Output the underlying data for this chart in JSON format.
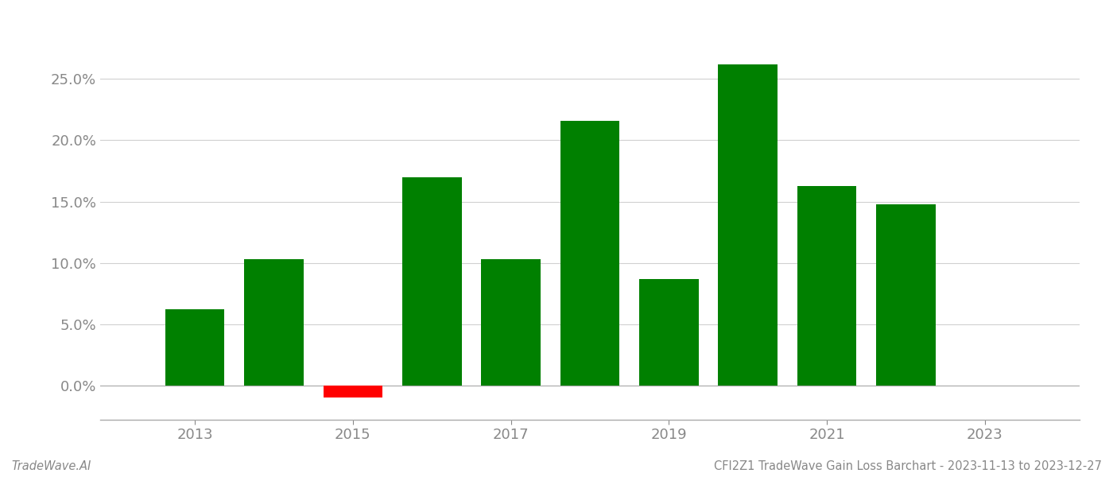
{
  "years": [
    2013,
    2014,
    2015,
    2016,
    2017,
    2018,
    2019,
    2020,
    2021,
    2022,
    2023
  ],
  "values": [
    0.062,
    0.103,
    -0.01,
    0.17,
    0.103,
    0.216,
    0.087,
    0.262,
    0.163,
    0.148,
    null
  ],
  "bar_colors": [
    "#008000",
    "#008000",
    "#ff0000",
    "#008000",
    "#008000",
    "#008000",
    "#008000",
    "#008000",
    "#008000",
    "#008000",
    null
  ],
  "ylim": [
    -0.028,
    0.295
  ],
  "yticks": [
    0.0,
    0.05,
    0.1,
    0.15,
    0.2,
    0.25
  ],
  "xlim": [
    2011.8,
    2024.2
  ],
  "xticks": [
    2013,
    2015,
    2017,
    2019,
    2021,
    2023
  ],
  "title": "CFI2Z1 TradeWave Gain Loss Barchart - 2023-11-13 to 2023-12-27",
  "watermark": "TradeWave.AI",
  "background_color": "#ffffff",
  "grid_color": "#d0d0d0",
  "bar_width": 0.75,
  "axis_color": "#aaaaaa",
  "tick_color": "#888888",
  "title_fontsize": 10.5,
  "watermark_fontsize": 10.5,
  "tick_labelsize": 13
}
